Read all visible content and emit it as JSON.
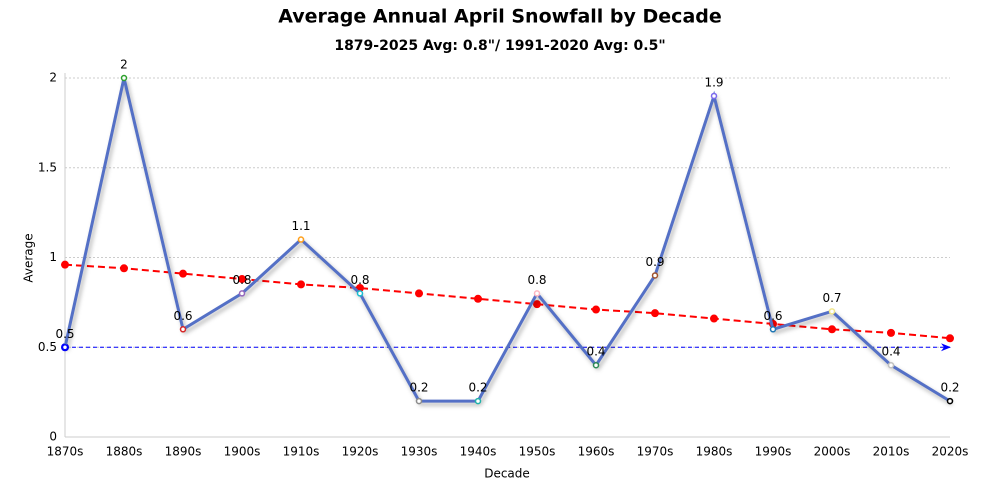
{
  "chart_data": {
    "type": "line",
    "title": "Average Annual April Snowfall by Decade",
    "subtitle": "1879-2025 Avg: 0.8\"/ 1991-2020 Avg: 0.5\"",
    "x_label": "Decade",
    "y_label": "Average",
    "categories": [
      "1870s",
      "1880s",
      "1890s",
      "1900s",
      "1910s",
      "1920s",
      "1930s",
      "1940s",
      "1950s",
      "1960s",
      "1970s",
      "1980s",
      "1990s",
      "2000s",
      "2010s",
      "2020s"
    ],
    "values": [
      0.5,
      2,
      0.6,
      0.8,
      1.1,
      0.8,
      0.2,
      0.2,
      0.8,
      0.4,
      0.9,
      1.9,
      0.6,
      0.7,
      0.4,
      0.2
    ],
    "color": "#5470c6",
    "point_colors": [
      "#0000ff",
      "#2ca02c",
      "#d62728",
      "#9467bd",
      "#ff9f1a",
      "#17becf",
      "#8c8c8c",
      "#20b2aa",
      "#ffb6c1",
      "#2e8b57",
      "#a0522d",
      "#7b68ee",
      "#1f77b4",
      "#f0e68c",
      "#c0c0c0",
      "#000000"
    ],
    "trend": {
      "values": [
        0.96,
        0.94,
        0.91,
        0.88,
        0.85,
        0.83,
        0.8,
        0.77,
        0.74,
        0.71,
        0.69,
        0.66,
        0.63,
        0.6,
        0.58,
        0.55
      ],
      "color": "#ff0000"
    },
    "reference_line": {
      "value": 0.5,
      "color": "#0000ff"
    },
    "ylim": [
      0,
      2
    ],
    "yticks": [
      0,
      0.5,
      1,
      1.5,
      2
    ],
    "grid": true
  }
}
